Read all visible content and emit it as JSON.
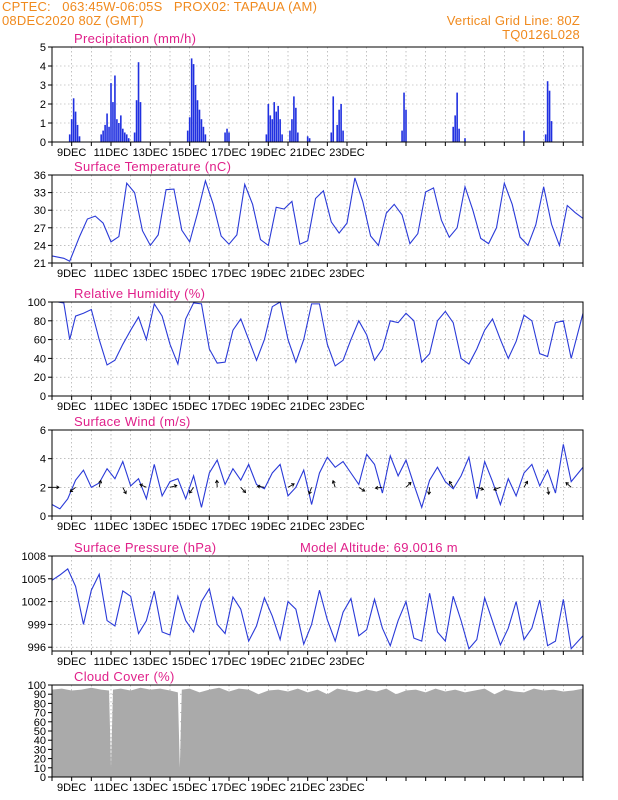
{
  "header": {
    "line1": "CPTEC:   063:45W-06:05S   PROX02: TAPAUA (AM)",
    "line2": "08DEC2020 80Z (GMT)",
    "grid_note": "Vertical Grid Line: 80Z",
    "code": "TQ0126L028"
  },
  "colors": {
    "line": "#2a3ad8",
    "bar": "#2030e0",
    "title": "#e0208a",
    "header": "#f08a1e",
    "cloud": "#aaaaaa"
  },
  "chart_data": [
    {
      "type": "bar",
      "title": "Precipitation (mm/h)",
      "ylim": [
        0,
        5
      ],
      "yticks": [
        "0",
        "1",
        "2",
        "3",
        "4",
        "5"
      ],
      "xtick_labels": [
        "9DEC",
        "11DEC",
        "13DEC",
        "15DEC",
        "17DEC",
        "19DEC",
        "21DEC",
        "23DEC"
      ],
      "x": [
        0.9,
        1.0,
        1.1,
        1.2,
        1.3,
        1.4,
        2.5,
        2.6,
        2.7,
        2.8,
        2.9,
        3.0,
        3.1,
        3.2,
        3.3,
        3.4,
        3.5,
        3.6,
        3.7,
        3.8,
        3.9,
        4.2,
        4.3,
        4.4,
        4.5,
        6.9,
        7.0,
        7.1,
        7.2,
        7.3,
        7.4,
        7.5,
        7.6,
        7.7,
        7.8,
        8.8,
        8.9,
        9.0,
        10.9,
        11.0,
        11.1,
        11.2,
        11.3,
        11.4,
        11.5,
        11.6,
        11.7,
        12.1,
        12.2,
        12.3,
        12.4,
        12.5,
        13.0,
        13.1,
        14.2,
        14.3,
        14.5,
        14.6,
        14.7,
        14.8,
        17.8,
        17.9,
        18.0,
        20.4,
        20.5,
        20.6,
        20.7,
        21.0,
        24.0,
        25.1,
        25.2,
        25.3,
        25.4
      ],
      "values": [
        0.4,
        1.2,
        2.3,
        1.6,
        0.9,
        0.3,
        0.4,
        0.6,
        0.9,
        1.5,
        0.8,
        3.1,
        2.1,
        3.5,
        1.2,
        1.0,
        1.4,
        0.7,
        0.5,
        0.4,
        0.2,
        0.5,
        2.2,
        4.2,
        2.1,
        0.6,
        1.3,
        4.4,
        4.1,
        3.0,
        2.2,
        1.7,
        1.2,
        0.8,
        0.4,
        0.5,
        0.7,
        0.5,
        0.4,
        2.0,
        1.4,
        1.2,
        2.1,
        1.6,
        1.9,
        1.2,
        0.4,
        0.6,
        1.2,
        2.4,
        1.8,
        0.5,
        0.3,
        0.2,
        0.5,
        2.4,
        0.9,
        1.7,
        2.0,
        0.6,
        0.6,
        2.6,
        1.7,
        0.8,
        1.4,
        2.6,
        0.7,
        0.2,
        0.6,
        0.4,
        3.2,
        2.7,
        1.1
      ]
    },
    {
      "type": "line",
      "title": "Surface Temperature (nC)",
      "ylim": [
        21,
        36
      ],
      "yticks": [
        "21",
        "24",
        "27",
        "30",
        "33",
        "36"
      ],
      "xtick_labels": [
        "9DEC",
        "11DEC",
        "13DEC",
        "15DEC",
        "17DEC",
        "19DEC",
        "21DEC",
        "23DEC"
      ],
      "x": [
        0.0,
        0.6,
        0.9,
        1.4,
        1.8,
        2.2,
        2.6,
        3.0,
        3.4,
        3.8,
        4.2,
        4.6,
        5.0,
        5.4,
        5.8,
        6.2,
        6.6,
        7.0,
        7.4,
        7.8,
        8.2,
        8.6,
        9.0,
        9.4,
        9.8,
        10.2,
        10.6,
        11.0,
        11.4,
        11.8,
        12.2,
        12.6,
        13.0,
        13.4,
        13.8,
        14.2,
        14.6,
        15.0,
        15.4,
        15.8,
        16.2,
        16.6,
        17.0,
        17.4,
        17.8,
        18.2,
        18.6,
        19.0,
        19.4,
        19.8,
        20.2,
        20.6,
        21.0,
        21.4,
        21.8,
        22.2,
        22.6,
        23.0,
        23.4,
        23.8,
        24.2,
        24.6,
        25.0,
        25.4,
        25.8,
        26.2,
        26.6,
        27.0
      ],
      "values": [
        22.2,
        21.8,
        21.3,
        25.5,
        28.5,
        29.0,
        27.8,
        24.6,
        25.5,
        34.6,
        33.0,
        26.5,
        24.0,
        25.8,
        33.5,
        33.6,
        26.6,
        24.6,
        29.5,
        35.0,
        31.0,
        25.6,
        24.2,
        25.8,
        34.4,
        31.0,
        25.0,
        24.0,
        30.5,
        30.2,
        31.5,
        24.2,
        24.8,
        32.0,
        33.3,
        28.0,
        26.1,
        27.8,
        35.5,
        31.5,
        25.6,
        24.0,
        29.5,
        31.0,
        29.2,
        24.3,
        26.0,
        33.1,
        33.8,
        28.3,
        25.4,
        27.0,
        34.0,
        30.0,
        25.2,
        24.3,
        27.0,
        34.6,
        31.0,
        25.4,
        24.0,
        27.5,
        34.0,
        27.6,
        24.0,
        30.8,
        29.6,
        28.6
      ]
    },
    {
      "type": "line",
      "title": "Relative Humidity (%)",
      "ylim": [
        0,
        100
      ],
      "yticks": [
        "0",
        "20",
        "40",
        "60",
        "80",
        "100"
      ],
      "xtick_labels": [
        "9DEC",
        "11DEC",
        "13DEC",
        "15DEC",
        "17DEC",
        "19DEC",
        "21DEC",
        "23DEC"
      ],
      "x": [
        0.0,
        0.3,
        0.6,
        0.9,
        1.2,
        1.6,
        2.0,
        2.4,
        2.8,
        3.2,
        3.6,
        4.0,
        4.4,
        4.8,
        5.2,
        5.6,
        6.0,
        6.4,
        6.8,
        7.2,
        7.6,
        8.0,
        8.4,
        8.8,
        9.2,
        9.6,
        10.0,
        10.4,
        10.8,
        11.2,
        11.6,
        12.0,
        12.4,
        12.8,
        13.2,
        13.6,
        14.0,
        14.4,
        14.8,
        15.2,
        15.6,
        16.0,
        16.4,
        16.8,
        17.2,
        17.6,
        18.0,
        18.4,
        18.8,
        19.2,
        19.6,
        20.0,
        20.4,
        20.8,
        21.2,
        21.6,
        22.0,
        22.4,
        22.8,
        23.2,
        23.6,
        24.0,
        24.4,
        24.8,
        25.2,
        25.6,
        26.0,
        26.4,
        27.0
      ],
      "values": [
        100,
        100,
        99,
        60,
        85,
        88,
        92,
        60,
        33,
        38,
        55,
        70,
        84,
        60,
        98,
        85,
        55,
        34,
        82,
        99,
        98,
        50,
        35,
        36,
        70,
        82,
        60,
        38,
        60,
        95,
        100,
        60,
        36,
        60,
        98,
        98,
        55,
        32,
        38,
        60,
        80,
        65,
        38,
        50,
        80,
        78,
        88,
        80,
        36,
        45,
        80,
        90,
        78,
        40,
        34,
        50,
        70,
        82,
        60,
        40,
        58,
        86,
        80,
        45,
        42,
        78,
        80,
        40,
        88
      ]
    },
    {
      "type": "line",
      "title": "Surface Wind (m/s)",
      "ylim": [
        0,
        6
      ],
      "yticks": [
        "0",
        "2",
        "4",
        "6"
      ],
      "xtick_labels": [
        "9DEC",
        "11DEC",
        "13DEC",
        "15DEC",
        "17DEC",
        "19DEC",
        "21DEC",
        "23DEC"
      ],
      "x": [
        0.0,
        0.4,
        0.8,
        1.2,
        1.6,
        2.0,
        2.4,
        2.8,
        3.2,
        3.6,
        4.0,
        4.4,
        4.8,
        5.2,
        5.6,
        6.0,
        6.4,
        6.8,
        7.2,
        7.6,
        8.0,
        8.4,
        8.8,
        9.2,
        9.6,
        10.0,
        10.4,
        10.8,
        11.2,
        11.6,
        12.0,
        12.4,
        12.8,
        13.2,
        13.6,
        14.0,
        14.4,
        14.8,
        15.2,
        15.6,
        16.0,
        16.4,
        16.8,
        17.2,
        17.6,
        18.0,
        18.4,
        18.8,
        19.2,
        19.6,
        20.0,
        20.4,
        20.8,
        21.2,
        21.6,
        22.0,
        22.4,
        22.8,
        23.2,
        23.6,
        24.0,
        24.4,
        24.8,
        25.2,
        25.6,
        26.0,
        26.4,
        27.0
      ],
      "values": [
        0.8,
        0.5,
        1.2,
        2.5,
        3.2,
        2.0,
        2.3,
        3.3,
        2.6,
        3.8,
        2.1,
        2.6,
        1.2,
        3.6,
        1.4,
        2.4,
        2.6,
        1.2,
        2.8,
        0.6,
        3.0,
        3.9,
        2.2,
        3.3,
        2.5,
        3.6,
        2.2,
        1.9,
        3.0,
        3.6,
        1.4,
        2.0,
        3.2,
        0.8,
        3.0,
        4.1,
        3.4,
        3.8,
        3.0,
        2.2,
        4.3,
        3.6,
        1.6,
        4.2,
        2.8,
        3.9,
        2.2,
        0.6,
        2.5,
        3.4,
        2.4,
        1.9,
        2.8,
        4.1,
        1.2,
        3.8,
        2.4,
        0.8,
        2.6,
        1.4,
        3.0,
        3.6,
        2.1,
        3.2,
        1.6,
        5.0,
        2.4,
        3.4
      ]
    },
    {
      "type": "line",
      "title": "Surface Pressure (hPa)",
      "subtitle": "Model Altitude: 69.0016 m",
      "ylim": [
        995.5,
        1008
      ],
      "yticks": [
        "996",
        "999",
        "1002",
        "1005",
        "1008"
      ],
      "xtick_labels": [
        "9DEC",
        "11DEC",
        "13DEC",
        "15DEC",
        "17DEC",
        "19DEC",
        "21DEC",
        "23DEC"
      ],
      "x": [
        0.0,
        0.4,
        0.8,
        1.2,
        1.6,
        2.0,
        2.4,
        2.8,
        3.2,
        3.6,
        4.0,
        4.4,
        4.8,
        5.2,
        5.6,
        6.0,
        6.4,
        6.8,
        7.2,
        7.6,
        8.0,
        8.4,
        8.8,
        9.2,
        9.6,
        10.0,
        10.4,
        10.8,
        11.2,
        11.6,
        12.0,
        12.4,
        12.8,
        13.2,
        13.6,
        14.0,
        14.4,
        14.8,
        15.2,
        15.6,
        16.0,
        16.4,
        16.8,
        17.2,
        17.6,
        18.0,
        18.4,
        18.8,
        19.2,
        19.6,
        20.0,
        20.4,
        20.8,
        21.2,
        21.6,
        22.0,
        22.4,
        22.8,
        23.2,
        23.6,
        24.0,
        24.4,
        24.8,
        25.2,
        25.6,
        26.0,
        26.4,
        27.0
      ],
      "values": [
        1004.8,
        1005.5,
        1006.3,
        1004.0,
        999.0,
        1003.5,
        1005.6,
        999.5,
        998.8,
        1003.4,
        1002.7,
        997.8,
        999.5,
        1003.4,
        998.0,
        997.6,
        1002.7,
        999.5,
        998.0,
        1002.0,
        1003.7,
        999.0,
        997.8,
        1002.6,
        1001.0,
        996.8,
        998.8,
        1002.5,
        1000.1,
        997.0,
        1002.0,
        1001.0,
        996.4,
        999.0,
        1003.5,
        999.6,
        996.8,
        1000.6,
        1002.4,
        997.5,
        998.3,
        1002.3,
        998.5,
        996.2,
        999.5,
        1002.0,
        997.2,
        996.8,
        1003.1,
        998.0,
        996.8,
        1002.7,
        999.5,
        995.8,
        997.0,
        1002.5,
        999.4,
        996.3,
        998.5,
        1002.0,
        997.0,
        998.5,
        1002.2,
        996.2,
        996.8,
        1002.3,
        995.8,
        997.5
      ]
    },
    {
      "type": "area",
      "title": "Cloud Cover (%)",
      "ylim": [
        0,
        100
      ],
      "yticks": [
        "0",
        "10",
        "20",
        "30",
        "40",
        "50",
        "60",
        "70",
        "80",
        "90",
        "100"
      ],
      "xtick_labels": [
        "9DEC",
        "11DEC",
        "13DEC",
        "15DEC",
        "17DEC",
        "19DEC",
        "21DEC",
        "23DEC"
      ],
      "x": [
        0,
        0.5,
        1.0,
        1.5,
        2.0,
        2.5,
        2.9,
        3.0,
        3.1,
        3.5,
        4.0,
        4.5,
        5.0,
        5.5,
        6.0,
        6.4,
        6.5,
        6.6,
        7.0,
        7.5,
        8.0,
        8.5,
        9.0,
        9.5,
        10.0,
        10.5,
        11.0,
        11.5,
        12.0,
        12.5,
        13.0,
        13.5,
        14.0,
        14.5,
        15.0,
        15.5,
        16.0,
        16.5,
        17.0,
        17.5,
        18.0,
        18.5,
        19.0,
        19.5,
        20.0,
        20.5,
        21.0,
        21.5,
        22.0,
        22.5,
        23.0,
        23.5,
        24.0,
        24.5,
        25.0,
        25.5,
        26.0,
        26.5,
        27.0
      ],
      "values": [
        95,
        96,
        94,
        95,
        97,
        95,
        94,
        10,
        95,
        96,
        94,
        97,
        95,
        96,
        94,
        92,
        10,
        95,
        96,
        92,
        95,
        97,
        93,
        96,
        95,
        90,
        94,
        95,
        93,
        96,
        92,
        95,
        90,
        96,
        94,
        92,
        95,
        93,
        96,
        90,
        94,
        95,
        92,
        96,
        93,
        95,
        92,
        94,
        96,
        90,
        95,
        93,
        92,
        96,
        94,
        95,
        93,
        94,
        96
      ]
    }
  ]
}
